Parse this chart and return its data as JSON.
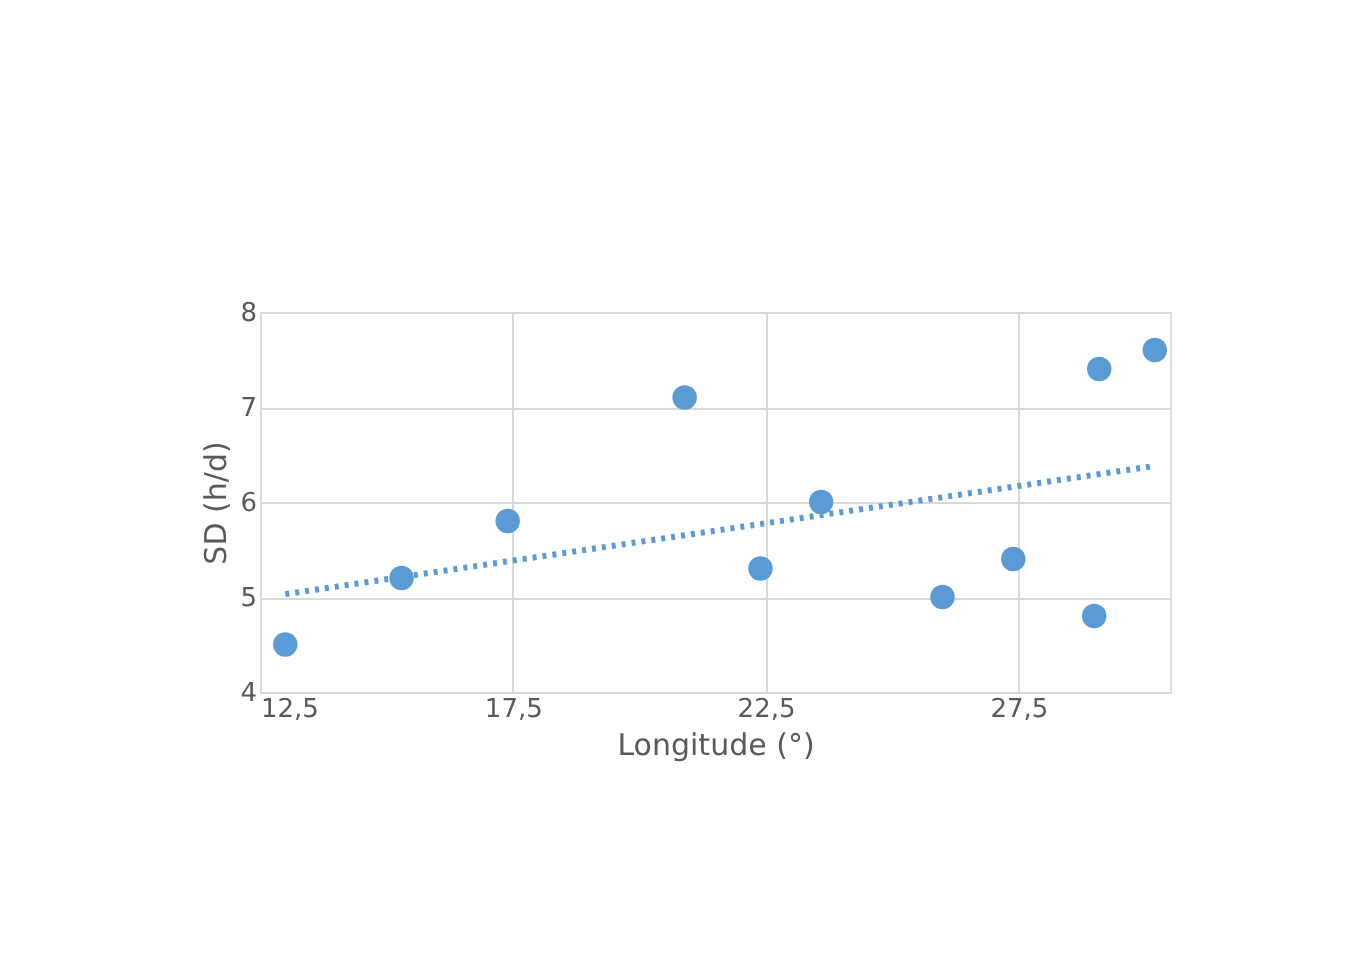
{
  "chart_data": {
    "type": "scatter",
    "xlabel": "Longitude (°)",
    "ylabel": "SD (h/d)",
    "xlim": [
      12.5,
      30.5
    ],
    "xticks": [
      {
        "value": 12.5,
        "label": "12,5"
      },
      {
        "value": 17.5,
        "label": "17,5"
      },
      {
        "value": 22.5,
        "label": "22,5"
      },
      {
        "value": 27.5,
        "label": "27,5"
      }
    ],
    "ylim": [
      4,
      8
    ],
    "yticks": [
      4,
      5,
      6,
      7,
      8
    ],
    "grid": true,
    "series": [
      {
        "marker": "circle",
        "color": "#5b9bd5",
        "x": [
          13.0,
          15.3,
          17.4,
          20.9,
          22.4,
          23.6,
          26.0,
          27.4,
          29.0,
          29.1,
          30.2
        ],
        "values": [
          4.5,
          5.2,
          5.8,
          7.1,
          5.3,
          6.0,
          5.0,
          5.4,
          4.8,
          7.4,
          7.6
        ]
      },
      {
        "type": "line",
        "line_style": "dotted",
        "color": "#5b9bd5",
        "x": [
          13.0,
          30.2
        ],
        "values": [
          5.03,
          6.38
        ]
      }
    ]
  }
}
